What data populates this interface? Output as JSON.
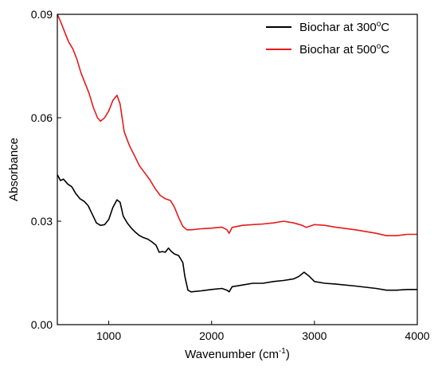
{
  "chart_data": {
    "type": "line",
    "title": "",
    "xlabel": "Wavenumber (cm",
    "xlabel_sup": "-1",
    "xlabel_end": ")",
    "ylabel": "Absorbance",
    "xlim": [
      500,
      4000
    ],
    "ylim": [
      0,
      0.09
    ],
    "x_ticks": [
      1000,
      2000,
      3000,
      4000
    ],
    "x_tick_labels": [
      "1000",
      "2000",
      "3000",
      "4000"
    ],
    "y_ticks": [
      0.0,
      0.03,
      0.06,
      0.09
    ],
    "y_tick_labels": [
      "0.00",
      "0.03",
      "0.06",
      "0.09"
    ],
    "grid": false,
    "legend_position": "top-right",
    "series": [
      {
        "name": "Biochar at 300",
        "name_sup": "o",
        "name_end": "C",
        "color": "#000000",
        "points": [
          [
            500,
            0.0435
          ],
          [
            530,
            0.0418
          ],
          [
            560,
            0.0422
          ],
          [
            600,
            0.0408
          ],
          [
            640,
            0.04
          ],
          [
            680,
            0.038
          ],
          [
            720,
            0.0365
          ],
          [
            760,
            0.0358
          ],
          [
            800,
            0.0345
          ],
          [
            840,
            0.032
          ],
          [
            880,
            0.0295
          ],
          [
            920,
            0.0288
          ],
          [
            960,
            0.029
          ],
          [
            1000,
            0.0305
          ],
          [
            1040,
            0.034
          ],
          [
            1080,
            0.0362
          ],
          [
            1110,
            0.0355
          ],
          [
            1140,
            0.0315
          ],
          [
            1180,
            0.0295
          ],
          [
            1220,
            0.028
          ],
          [
            1260,
            0.0268
          ],
          [
            1300,
            0.0258
          ],
          [
            1340,
            0.0252
          ],
          [
            1380,
            0.0248
          ],
          [
            1420,
            0.024
          ],
          [
            1460,
            0.023
          ],
          [
            1490,
            0.021
          ],
          [
            1520,
            0.0212
          ],
          [
            1550,
            0.021
          ],
          [
            1580,
            0.0222
          ],
          [
            1610,
            0.0212
          ],
          [
            1640,
            0.0205
          ],
          [
            1680,
            0.02
          ],
          [
            1720,
            0.018
          ],
          [
            1740,
            0.014
          ],
          [
            1770,
            0.01
          ],
          [
            1800,
            0.0095
          ],
          [
            1900,
            0.0098
          ],
          [
            2000,
            0.0102
          ],
          [
            2100,
            0.0105
          ],
          [
            2150,
            0.01
          ],
          [
            2170,
            0.0095
          ],
          [
            2200,
            0.011
          ],
          [
            2300,
            0.0115
          ],
          [
            2400,
            0.012
          ],
          [
            2500,
            0.012
          ],
          [
            2600,
            0.0125
          ],
          [
            2700,
            0.0128
          ],
          [
            2800,
            0.0133
          ],
          [
            2850,
            0.014
          ],
          [
            2900,
            0.0152
          ],
          [
            2950,
            0.014
          ],
          [
            3000,
            0.0125
          ],
          [
            3100,
            0.012
          ],
          [
            3200,
            0.0118
          ],
          [
            3400,
            0.0112
          ],
          [
            3600,
            0.0105
          ],
          [
            3700,
            0.01
          ],
          [
            3800,
            0.01
          ],
          [
            3900,
            0.0102
          ],
          [
            4000,
            0.0102
          ]
        ]
      },
      {
        "name": "Biochar at 500",
        "name_sup": "o",
        "name_end": "C",
        "color": "#e41a1c",
        "points": [
          [
            500,
            0.09
          ],
          [
            530,
            0.088
          ],
          [
            570,
            0.085
          ],
          [
            610,
            0.082
          ],
          [
            650,
            0.08
          ],
          [
            690,
            0.077
          ],
          [
            730,
            0.073
          ],
          [
            770,
            0.07
          ],
          [
            810,
            0.067
          ],
          [
            850,
            0.063
          ],
          [
            890,
            0.06
          ],
          [
            920,
            0.059
          ],
          [
            960,
            0.06
          ],
          [
            1000,
            0.062
          ],
          [
            1040,
            0.065
          ],
          [
            1080,
            0.0665
          ],
          [
            1110,
            0.064
          ],
          [
            1150,
            0.056
          ],
          [
            1200,
            0.052
          ],
          [
            1250,
            0.049
          ],
          [
            1300,
            0.046
          ],
          [
            1350,
            0.044
          ],
          [
            1400,
            0.042
          ],
          [
            1450,
            0.0395
          ],
          [
            1500,
            0.0375
          ],
          [
            1550,
            0.0365
          ],
          [
            1600,
            0.036
          ],
          [
            1640,
            0.034
          ],
          [
            1680,
            0.031
          ],
          [
            1720,
            0.0285
          ],
          [
            1760,
            0.0275
          ],
          [
            1800,
            0.0275
          ],
          [
            1900,
            0.0278
          ],
          [
            2000,
            0.028
          ],
          [
            2100,
            0.0283
          ],
          [
            2150,
            0.0275
          ],
          [
            2170,
            0.0265
          ],
          [
            2200,
            0.0282
          ],
          [
            2300,
            0.0288
          ],
          [
            2400,
            0.029
          ],
          [
            2500,
            0.0292
          ],
          [
            2600,
            0.0295
          ],
          [
            2700,
            0.03
          ],
          [
            2800,
            0.0295
          ],
          [
            2880,
            0.0288
          ],
          [
            2920,
            0.0282
          ],
          [
            3000,
            0.029
          ],
          [
            3100,
            0.0288
          ],
          [
            3200,
            0.0283
          ],
          [
            3400,
            0.0275
          ],
          [
            3600,
            0.0265
          ],
          [
            3700,
            0.0258
          ],
          [
            3800,
            0.0258
          ],
          [
            3900,
            0.0262
          ],
          [
            4000,
            0.0262
          ]
        ]
      }
    ]
  }
}
